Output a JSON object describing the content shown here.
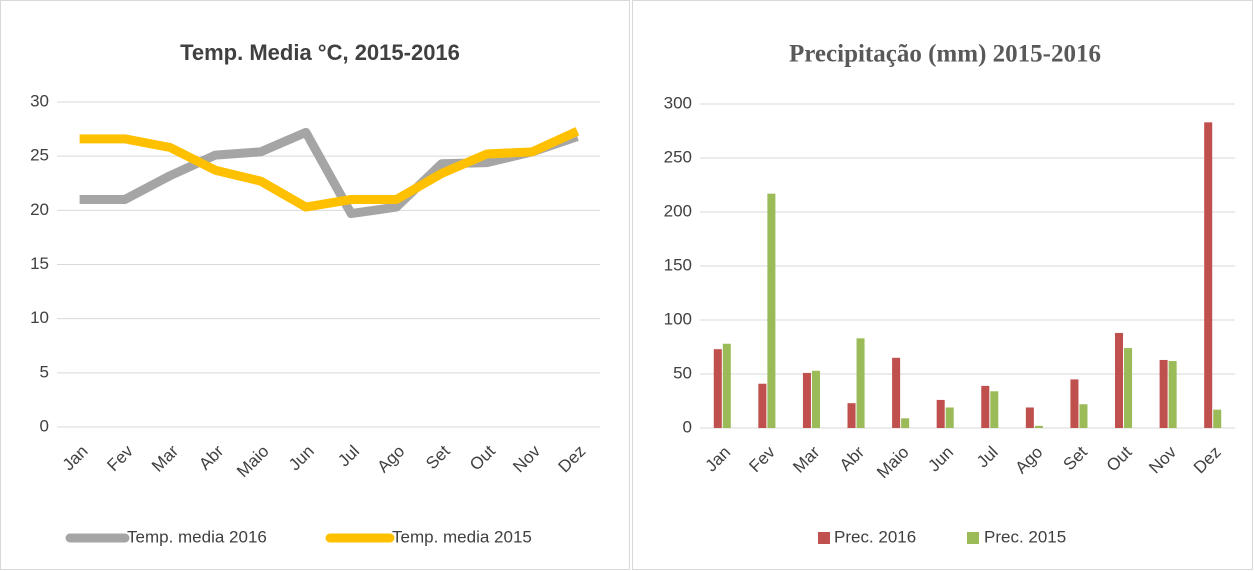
{
  "chart_data": [
    {
      "type": "line",
      "title": "Temp. Media °C, 2015-2016",
      "categories": [
        "Jan",
        "Fev",
        "Mar",
        "Abr",
        "Maio",
        "Jun",
        "Jul",
        "Ago",
        "Set",
        "Out",
        "Nov",
        "Dez"
      ],
      "series": [
        {
          "name": "Temp. media 2016",
          "color": "#a5a5a5",
          "values": [
            21,
            21,
            23.2,
            25.1,
            25.4,
            27.2,
            19.7,
            20.3,
            24.3,
            24.4,
            25.4,
            26.8
          ]
        },
        {
          "name": "Temp. media 2015",
          "color": "#ffc000",
          "values": [
            26.6,
            26.6,
            25.8,
            23.7,
            22.7,
            20.3,
            21,
            21,
            23.4,
            25.2,
            25.4,
            27.3
          ]
        }
      ],
      "ylim": [
        0,
        30
      ],
      "yticks": [
        0,
        5,
        10,
        15,
        20,
        25,
        30
      ],
      "grid": true,
      "legend": "bottom"
    },
    {
      "type": "bar",
      "title": "Precipitação (mm) 2015-2016",
      "categories": [
        "Jan",
        "Fev",
        "Mar",
        "Abr",
        "Maio",
        "Jun",
        "Jul",
        "Ago",
        "Set",
        "Out",
        "Nov",
        "Dez"
      ],
      "series": [
        {
          "name": "Prec. 2016",
          "color": "#c0504d",
          "values": [
            73,
            41,
            51,
            23,
            65,
            26,
            39,
            19,
            45,
            88,
            63,
            283
          ]
        },
        {
          "name": "Prec. 2015",
          "color": "#9bbb59",
          "values": [
            78,
            217,
            53,
            83,
            9,
            19,
            34,
            2,
            22,
            74,
            62,
            17
          ]
        }
      ],
      "ylim": [
        0,
        300
      ],
      "yticks": [
        0,
        50,
        100,
        150,
        200,
        250,
        300
      ],
      "grid": true,
      "legend": "bottom"
    }
  ]
}
